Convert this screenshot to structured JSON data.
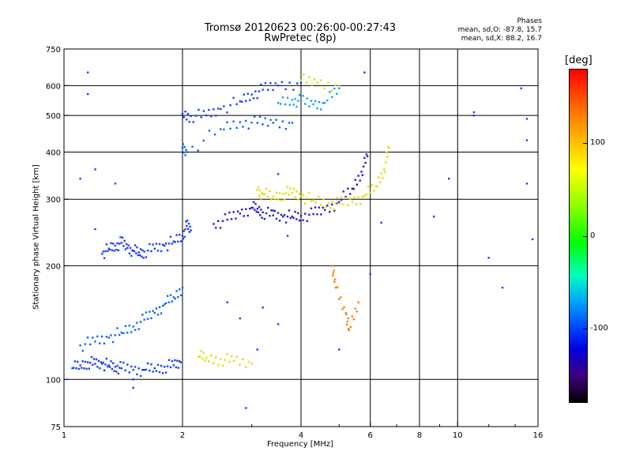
{
  "header": {
    "title_line1": "Tromsø 20120623 00:26:00-00:27:43",
    "title_line2": "RwPretec (8p)",
    "phase_label": "Phases",
    "stats_o": "mean, sd,O: -87.8, 15.7",
    "stats_x": "mean, sd,X: 88.2, 16.7"
  },
  "colorbar": {
    "unit_label": "[deg]",
    "ticks": [
      {
        "label": "100",
        "value": 100
      },
      {
        "label": "0",
        "value": 0
      },
      {
        "label": "-100",
        "value": -100
      }
    ],
    "range": [
      -180,
      180
    ]
  },
  "chart_data": {
    "type": "scatter",
    "title": "Tromsø 20120623 00:26:00-00:27:43",
    "subtitle": "RwPretec (8p)",
    "xlabel": "Frequency [MHz]",
    "ylabel": "Stationary phase Virtual Height [km]",
    "xscale": "log",
    "yscale": "log",
    "xlim": [
      1,
      16
    ],
    "ylim": [
      75,
      750
    ],
    "x_ticks": [
      {
        "label": "1",
        "value": 1
      },
      {
        "label": "2",
        "value": 2
      },
      {
        "label": "4",
        "value": 4
      },
      {
        "label": "6",
        "value": 6
      },
      {
        "label": "8",
        "value": 8
      },
      {
        "label": "10",
        "value": 10
      },
      {
        "label": "16",
        "value": 16
      }
    ],
    "x_gridlines": [
      2,
      4,
      6,
      8,
      10
    ],
    "y_ticks": [
      {
        "label": "750",
        "value": 750
      },
      {
        "label": "600",
        "value": 600
      },
      {
        "label": "500",
        "value": 500
      },
      {
        "label": "400",
        "value": 400
      },
      {
        "label": "300",
        "value": 300
      },
      {
        "label": "200",
        "value": 200
      },
      {
        "label": "100",
        "value": 100
      },
      {
        "label": "75",
        "value": 75
      }
    ],
    "y_gridlines": [
      600,
      500,
      400,
      300,
      200,
      100
    ],
    "color_scale": "phase [deg]",
    "series": [
      {
        "points": [
          [
            1.05,
            107
          ],
          [
            1.1,
            109
          ],
          [
            1.15,
            111
          ],
          [
            1.2,
            110
          ],
          [
            1.25,
            110
          ],
          [
            1.3,
            109
          ],
          [
            1.35,
            108
          ],
          [
            1.4,
            107
          ],
          [
            1.5,
            106
          ],
          [
            1.6,
            106
          ],
          [
            1.7,
            107
          ],
          [
            1.8,
            108
          ],
          [
            1.9,
            109
          ],
          [
            1.98,
            111
          ]
        ],
        "color": "#1a3cff"
      },
      {
        "points": [
          [
            1.1,
            123
          ],
          [
            1.2,
            126
          ],
          [
            1.3,
            129
          ],
          [
            1.4,
            133
          ],
          [
            1.5,
            138
          ],
          [
            1.6,
            144
          ],
          [
            1.7,
            150
          ],
          [
            1.8,
            158
          ],
          [
            1.9,
            165
          ],
          [
            2.0,
            175
          ]
        ],
        "color": "#1060ff"
      },
      {
        "points": [
          [
            1.25,
            215
          ],
          [
            1.3,
            222
          ],
          [
            1.35,
            226
          ],
          [
            1.4,
            230
          ],
          [
            1.45,
            223
          ],
          [
            1.5,
            219
          ],
          [
            1.55,
            217
          ],
          [
            1.6,
            218
          ],
          [
            1.7,
            222
          ],
          [
            1.8,
            226
          ],
          [
            1.9,
            232
          ],
          [
            2.0,
            240
          ],
          [
            2.05,
            255
          ],
          [
            2.1,
            248
          ]
        ],
        "color": "#1a3cff"
      },
      {
        "points": [
          [
            2.4,
            258
          ],
          [
            2.6,
            265
          ],
          [
            2.8,
            275
          ],
          [
            3.0,
            285
          ],
          [
            3.1,
            283
          ],
          [
            3.2,
            277
          ],
          [
            3.4,
            272
          ],
          [
            3.6,
            270
          ],
          [
            3.8,
            270
          ],
          [
            4.0,
            271
          ],
          [
            4.3,
            274
          ],
          [
            4.6,
            281
          ],
          [
            5.0,
            295
          ],
          [
            5.4,
            320
          ],
          [
            5.7,
            355
          ],
          [
            5.9,
            390
          ]
        ],
        "color": "#2a1acc"
      },
      {
        "points": [
          [
            3.1,
            318
          ],
          [
            3.2,
            310
          ],
          [
            3.4,
            305
          ],
          [
            3.6,
            310
          ],
          [
            3.8,
            312
          ],
          [
            4.0,
            306
          ],
          [
            4.3,
            298
          ],
          [
            4.7,
            293
          ],
          [
            5.0,
            292
          ],
          [
            5.4,
            296
          ],
          [
            5.8,
            306
          ],
          [
            6.2,
            325
          ],
          [
            6.5,
            360
          ],
          [
            6.7,
            410
          ]
        ],
        "color": "#e0e000"
      },
      {
        "points": [
          [
            2.0,
            505
          ],
          [
            2.1,
            498
          ],
          [
            2.3,
            500
          ],
          [
            2.5,
            520
          ],
          [
            2.8,
            545
          ],
          [
            3.0,
            568
          ],
          [
            3.2,
            585
          ],
          [
            3.5,
            600
          ],
          [
            4.0,
            610
          ]
        ],
        "color": "#1a40ff"
      },
      {
        "points": [
          [
            2.0,
            410
          ],
          [
            2.05,
            400
          ],
          [
            2.5,
            460
          ],
          [
            2.8,
            480
          ],
          [
            3.1,
            478
          ],
          [
            3.4,
            478
          ],
          [
            3.8,
            478
          ]
        ],
        "color": "#1060ff"
      },
      {
        "points": [
          [
            3.5,
            540
          ],
          [
            3.8,
            550
          ],
          [
            4.0,
            545
          ],
          [
            4.3,
            535
          ],
          [
            4.6,
            540
          ],
          [
            5.0,
            590
          ]
        ],
        "color": "#10a0ff"
      },
      {
        "points": [
          [
            4.0,
            620
          ],
          [
            4.4,
            610
          ],
          [
            5.0,
            600
          ]
        ],
        "color": "#e0e000"
      },
      {
        "points": [
          [
            2.2,
            115
          ],
          [
            2.3,
            114
          ],
          [
            2.5,
            113
          ],
          [
            2.7,
            112
          ],
          [
            3.0,
            110
          ]
        ],
        "color": "#e0e000"
      },
      {
        "points": [
          [
            4.8,
            200
          ],
          [
            4.9,
            175
          ],
          [
            5.2,
            150
          ],
          [
            5.3,
            135
          ],
          [
            5.6,
            160
          ]
        ],
        "color": "#ff8000"
      },
      {
        "points": [
          [
            1.15,
            650
          ],
          [
            1.15,
            570
          ],
          [
            1.2,
            360
          ],
          [
            1.35,
            330
          ],
          [
            1.2,
            250
          ],
          [
            1.1,
            340
          ],
          [
            1.5,
            95
          ],
          [
            1.5,
            100
          ],
          [
            3.5,
            350
          ],
          [
            3.4,
            280
          ],
          [
            3.7,
            240
          ],
          [
            6.0,
            190
          ],
          [
            6.4,
            260
          ],
          [
            8.7,
            270
          ],
          [
            9.5,
            340
          ],
          [
            11,
            510
          ],
          [
            11,
            500
          ],
          [
            12,
            210
          ],
          [
            13,
            175
          ],
          [
            14.5,
            590
          ],
          [
            15,
            330
          ],
          [
            15,
            430
          ],
          [
            15,
            490
          ],
          [
            15.5,
            235
          ],
          [
            2.9,
            84
          ],
          [
            3.1,
            120
          ],
          [
            3.2,
            155
          ],
          [
            3.5,
            140
          ],
          [
            2.8,
            145
          ],
          [
            2.6,
            160
          ],
          [
            5.8,
            650
          ],
          [
            5.0,
            120
          ]
        ],
        "color": "#1a3cff"
      }
    ]
  }
}
